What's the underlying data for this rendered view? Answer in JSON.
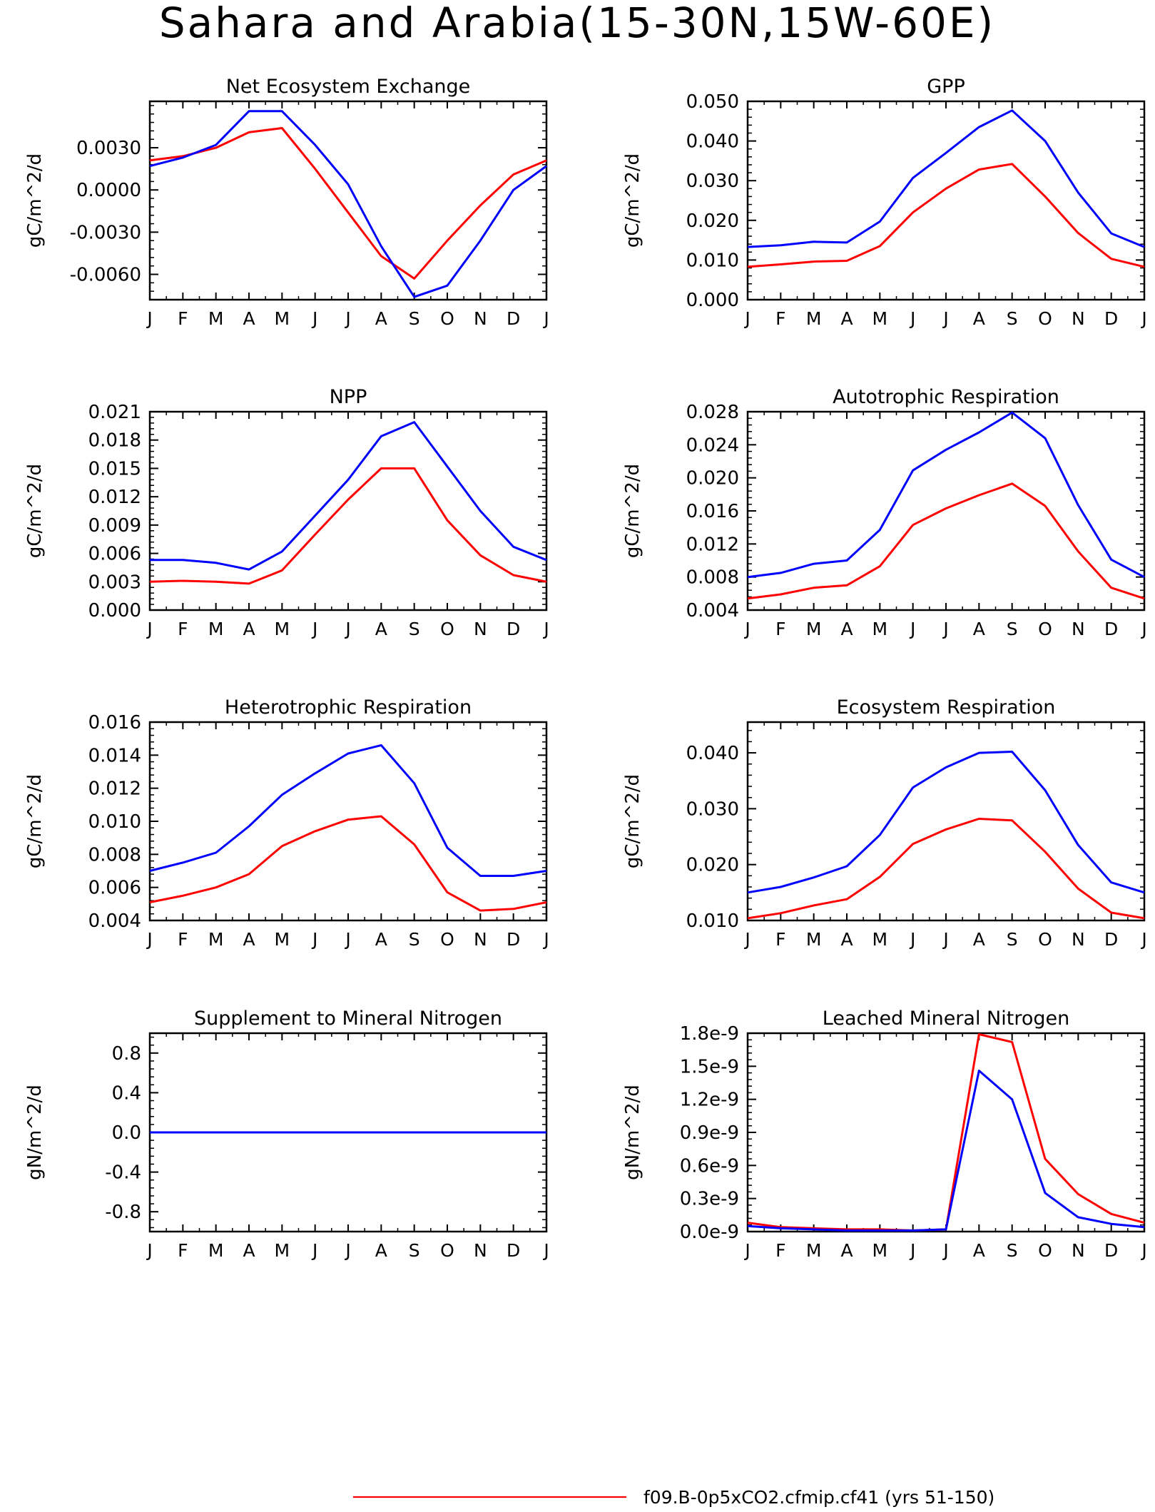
{
  "figure": {
    "title": "Sahara and Arabia(15-30N,15W-60E)",
    "colors": {
      "axis": "#000000",
      "series_red": "#ff0000",
      "series_blue": "#0000ff"
    },
    "legend": {
      "entries": [
        {
          "label": "f09.B-0p5xCO2.cfmip.cf41 (yrs 51-150)",
          "color": "#ff0000"
        }
      ],
      "placement": "bottom-right"
    }
  },
  "chart_data": [
    {
      "type": "line",
      "title": "Net Ecosystem Exchange",
      "ylabel": "gC/m^2/d",
      "categories": [
        "J",
        "F",
        "M",
        "A",
        "M",
        "J",
        "J",
        "A",
        "S",
        "O",
        "N",
        "D",
        "J"
      ],
      "ylim": [
        -0.0078,
        0.0063
      ],
      "yticks": [
        -0.006,
        -0.003,
        0.0,
        0.003
      ],
      "ytick_labels": [
        "-0.0060",
        "-0.0030",
        "0.0000",
        "0.0030"
      ],
      "series": [
        {
          "color": "#ff0000",
          "values": [
            0.0021,
            0.0024,
            0.003,
            0.0041,
            0.0044,
            0.0015,
            -0.0016,
            -0.0047,
            -0.0063,
            -0.0036,
            -0.0011,
            0.0011,
            0.0021
          ]
        },
        {
          "color": "#0000ff",
          "values": [
            0.0017,
            0.0023,
            0.0032,
            0.0056,
            0.0056,
            0.0032,
            0.0004,
            -0.004,
            -0.0076,
            -0.0068,
            -0.0036,
            0.0,
            0.0017
          ]
        }
      ]
    },
    {
      "type": "line",
      "title": "GPP",
      "ylabel": "gC/m^2/d",
      "categories": [
        "J",
        "F",
        "M",
        "A",
        "M",
        "J",
        "J",
        "A",
        "S",
        "O",
        "N",
        "D",
        "J"
      ],
      "ylim": [
        0,
        0.05
      ],
      "yticks": [
        0,
        0.01,
        0.02,
        0.03,
        0.04,
        0.05
      ],
      "ytick_labels": [
        "0.000",
        "0.010",
        "0.020",
        "0.030",
        "0.040",
        "0.050"
      ],
      "series": [
        {
          "color": "#ff0000",
          "values": [
            0.0083,
            0.0089,
            0.0096,
            0.0098,
            0.0135,
            0.022,
            0.028,
            0.0328,
            0.0342,
            0.026,
            0.0168,
            0.0103,
            0.0083
          ]
        },
        {
          "color": "#0000ff",
          "values": [
            0.0133,
            0.0137,
            0.0146,
            0.0144,
            0.0197,
            0.0307,
            0.037,
            0.0435,
            0.0477,
            0.04,
            0.027,
            0.0167,
            0.0133
          ]
        }
      ]
    },
    {
      "type": "line",
      "title": "NPP",
      "ylabel": "gC/m^2/d",
      "categories": [
        "J",
        "F",
        "M",
        "A",
        "M",
        "J",
        "J",
        "A",
        "S",
        "O",
        "N",
        "D",
        "J"
      ],
      "ylim": [
        0,
        0.021
      ],
      "yticks": [
        0,
        0.003,
        0.006,
        0.009,
        0.012,
        0.015,
        0.018,
        0.021
      ],
      "ytick_labels": [
        "0.000",
        "0.003",
        "0.006",
        "0.009",
        "0.012",
        "0.015",
        "0.018",
        "0.021"
      ],
      "series": [
        {
          "color": "#ff0000",
          "values": [
            0.003,
            0.0031,
            0.003,
            0.0028,
            0.0042,
            0.008,
            0.0117,
            0.015,
            0.015,
            0.0095,
            0.0058,
            0.0037,
            0.003
          ]
        },
        {
          "color": "#0000ff",
          "values": [
            0.0053,
            0.0053,
            0.005,
            0.0043,
            0.0062,
            0.01,
            0.0138,
            0.0184,
            0.0199,
            0.0152,
            0.0105,
            0.0067,
            0.0053
          ]
        }
      ]
    },
    {
      "type": "line",
      "title": "Autotrophic Respiration",
      "ylabel": "gC/m^2/d",
      "categories": [
        "J",
        "F",
        "M",
        "A",
        "M",
        "J",
        "J",
        "A",
        "S",
        "O",
        "N",
        "D",
        "J"
      ],
      "ylim": [
        0.004,
        0.028
      ],
      "yticks": [
        0.004,
        0.008,
        0.012,
        0.016,
        0.02,
        0.024,
        0.028
      ],
      "ytick_labels": [
        "0.004",
        "0.008",
        "0.012",
        "0.016",
        "0.020",
        "0.024",
        "0.028"
      ],
      "series": [
        {
          "color": "#ff0000",
          "values": [
            0.0054,
            0.0059,
            0.0067,
            0.007,
            0.0093,
            0.0143,
            0.0163,
            0.0179,
            0.0193,
            0.0166,
            0.0111,
            0.0067,
            0.0054
          ]
        },
        {
          "color": "#0000ff",
          "values": [
            0.008,
            0.0085,
            0.0096,
            0.01,
            0.0137,
            0.0209,
            0.0234,
            0.0255,
            0.0279,
            0.0248,
            0.0167,
            0.0101,
            0.008
          ]
        }
      ]
    },
    {
      "type": "line",
      "title": "Heterotrophic Respiration",
      "ylabel": "gC/m^2/d",
      "categories": [
        "J",
        "F",
        "M",
        "A",
        "M",
        "J",
        "J",
        "A",
        "S",
        "O",
        "N",
        "D",
        "J"
      ],
      "ylim": [
        0.004,
        0.016
      ],
      "yticks": [
        0.004,
        0.006,
        0.008,
        0.01,
        0.012,
        0.014,
        0.016
      ],
      "ytick_labels": [
        "0.004",
        "0.006",
        "0.008",
        "0.010",
        "0.012",
        "0.014",
        "0.016"
      ],
      "series": [
        {
          "color": "#ff0000",
          "values": [
            0.0051,
            0.0055,
            0.006,
            0.0068,
            0.0085,
            0.0094,
            0.0101,
            0.0103,
            0.0086,
            0.0057,
            0.0046,
            0.0047,
            0.0051
          ]
        },
        {
          "color": "#0000ff",
          "values": [
            0.007,
            0.0075,
            0.0081,
            0.0097,
            0.0116,
            0.0129,
            0.0141,
            0.0146,
            0.0123,
            0.0084,
            0.0067,
            0.0067,
            0.007
          ]
        }
      ]
    },
    {
      "type": "line",
      "title": "Ecosystem Respiration",
      "ylabel": "gC/m^2/d",
      "categories": [
        "J",
        "F",
        "M",
        "A",
        "M",
        "J",
        "J",
        "A",
        "S",
        "O",
        "N",
        "D",
        "J"
      ],
      "ylim": [
        0.01,
        0.0455
      ],
      "yticks": [
        0.01,
        0.02,
        0.03,
        0.04
      ],
      "ytick_labels": [
        "0.010",
        "0.020",
        "0.030",
        "0.040"
      ],
      "series": [
        {
          "color": "#ff0000",
          "values": [
            0.0104,
            0.0113,
            0.0127,
            0.0138,
            0.0178,
            0.0237,
            0.0263,
            0.0282,
            0.0279,
            0.0223,
            0.0157,
            0.0114,
            0.0104
          ]
        },
        {
          "color": "#0000ff",
          "values": [
            0.015,
            0.016,
            0.0177,
            0.0197,
            0.0253,
            0.0338,
            0.0374,
            0.04,
            0.0402,
            0.0333,
            0.0235,
            0.0168,
            0.015
          ]
        }
      ]
    },
    {
      "type": "line",
      "title": "Supplement to Mineral Nitrogen",
      "ylabel": "gN/m^2/d",
      "categories": [
        "J",
        "F",
        "M",
        "A",
        "M",
        "J",
        "J",
        "A",
        "S",
        "O",
        "N",
        "D",
        "J"
      ],
      "ylim": [
        -1.0,
        1.0
      ],
      "yticks": [
        -0.8,
        -0.4,
        0.0,
        0.4,
        0.8
      ],
      "ytick_labels": [
        "-0.8",
        "-0.4",
        "0.0",
        "0.4",
        "0.8"
      ],
      "series": [
        {
          "color": "#ff0000",
          "values": [
            0,
            0,
            0,
            0,
            0,
            0,
            0,
            0,
            0,
            0,
            0,
            0,
            0
          ]
        },
        {
          "color": "#0000ff",
          "values": [
            0,
            0,
            0,
            0,
            0,
            0,
            0,
            0,
            0,
            0,
            0,
            0,
            0
          ]
        }
      ]
    },
    {
      "type": "line",
      "title": "Leached Mineral Nitrogen",
      "ylabel": "gN/m^2/d",
      "categories": [
        "J",
        "F",
        "M",
        "A",
        "M",
        "J",
        "J",
        "A",
        "S",
        "O",
        "N",
        "D",
        "J"
      ],
      "ylim": [
        0,
        1.8e-09
      ],
      "yticks": [
        0,
        3e-10,
        6e-10,
        9e-10,
        1.2e-09,
        1.5e-09,
        1.8e-09
      ],
      "ytick_labels": [
        "0.0e-9",
        "0.3e-9",
        "0.6e-9",
        "0.9e-9",
        "1.2e-9",
        "1.5e-9",
        "1.8e-9"
      ],
      "series": [
        {
          "color": "#ff0000",
          "values": [
            8e-11,
            4e-11,
            3e-11,
            2e-11,
            2e-11,
            1e-11,
            2e-11,
            1.79e-09,
            1.72e-09,
            6.6e-10,
            3.4e-10,
            1.6e-10,
            8e-11
          ]
        },
        {
          "color": "#0000ff",
          "values": [
            5e-11,
            3e-11,
            2e-11,
            1e-11,
            1e-11,
            1e-11,
            2e-11,
            1.46e-09,
            1.2e-09,
            3.5e-10,
            1.3e-10,
            7e-11,
            4e-11
          ]
        }
      ]
    }
  ]
}
